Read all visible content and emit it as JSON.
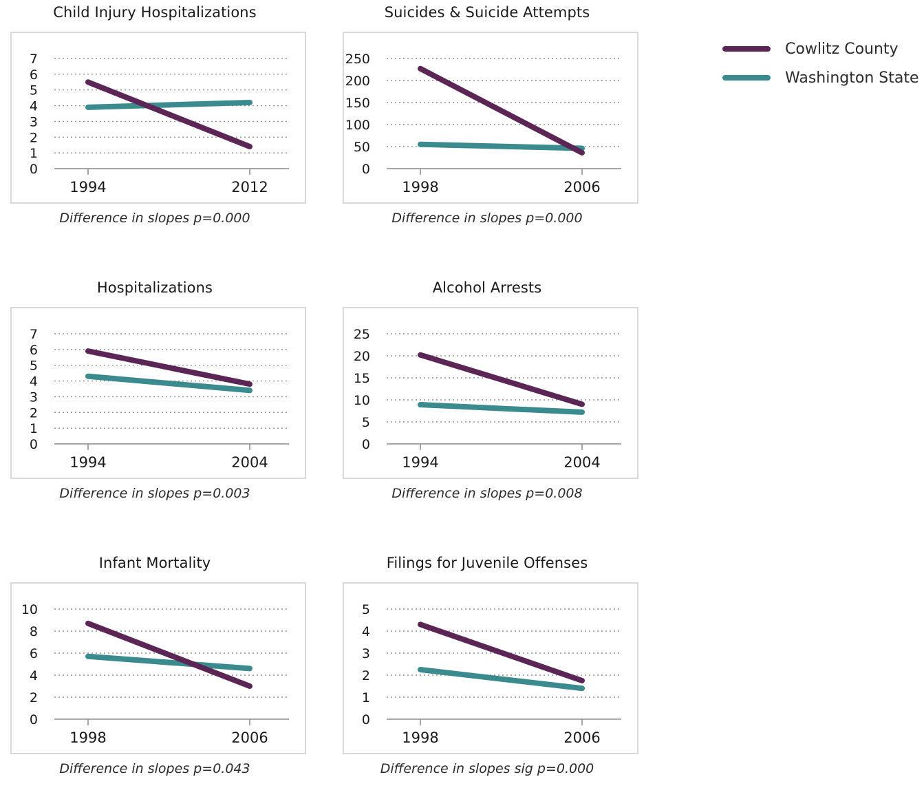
{
  "legend": {
    "items": [
      {
        "label": "Cowlitz County",
        "color": "#5b2556"
      },
      {
        "label": "Washington State",
        "color": "#3a8a8e"
      }
    ]
  },
  "chart_data": [
    {
      "type": "line",
      "title": "Child Injury Hospitalizations",
      "caption": "Difference in slopes p=0.000",
      "categories": [
        "1994",
        "2012"
      ],
      "ylim": [
        0,
        7
      ],
      "yticks": [
        0,
        1,
        2,
        3,
        4,
        5,
        6,
        7
      ],
      "grid": true,
      "series": [
        {
          "name": "Cowlitz County",
          "values": [
            5.5,
            1.4
          ]
        },
        {
          "name": "Washington State",
          "values": [
            3.9,
            4.2
          ]
        }
      ]
    },
    {
      "type": "line",
      "title": "Suicides & Suicide Attempts",
      "caption": "Difference in slopes p=0.000",
      "categories": [
        "1998",
        "2006"
      ],
      "ylim": [
        0,
        250
      ],
      "yticks": [
        0,
        50,
        100,
        150,
        200,
        250
      ],
      "grid": true,
      "series": [
        {
          "name": "Cowlitz County",
          "values": [
            227,
            36
          ]
        },
        {
          "name": "Washington State",
          "values": [
            55,
            46
          ]
        }
      ]
    },
    {
      "type": "line",
      "title": "Hospitalizations",
      "caption": "Difference in slopes p=0.003",
      "categories": [
        "1994",
        "2004"
      ],
      "ylim": [
        0,
        7
      ],
      "yticks": [
        0,
        1,
        2,
        3,
        4,
        5,
        6,
        7
      ],
      "grid": true,
      "series": [
        {
          "name": "Cowlitz County",
          "values": [
            5.9,
            3.8
          ]
        },
        {
          "name": "Washington State",
          "values": [
            4.3,
            3.4
          ]
        }
      ]
    },
    {
      "type": "line",
      "title": "Alcohol Arrests",
      "caption": "Difference in slopes p=0.008",
      "categories": [
        "1994",
        "2004"
      ],
      "ylim": [
        0,
        25
      ],
      "yticks": [
        0,
        5,
        10,
        15,
        20,
        25
      ],
      "grid": true,
      "series": [
        {
          "name": "Cowlitz County",
          "values": [
            20.2,
            9.0
          ]
        },
        {
          "name": "Washington State",
          "values": [
            8.9,
            7.2
          ]
        }
      ]
    },
    {
      "type": "line",
      "title": "Infant Mortality",
      "caption": "Difference in slopes p=0.043",
      "categories": [
        "1998",
        "2006"
      ],
      "ylim": [
        0,
        10
      ],
      "yticks": [
        0,
        2,
        4,
        6,
        8,
        10
      ],
      "grid": true,
      "series": [
        {
          "name": "Cowlitz County",
          "values": [
            8.7,
            3.0
          ]
        },
        {
          "name": "Washington State",
          "values": [
            5.7,
            4.6
          ]
        }
      ]
    },
    {
      "type": "line",
      "title": "Filings for Juvenile Offenses",
      "caption": "Difference in slopes sig p=0.000",
      "categories": [
        "1998",
        "2006"
      ],
      "ylim": [
        0,
        5
      ],
      "yticks": [
        0,
        1,
        2,
        3,
        4,
        5
      ],
      "grid": true,
      "series": [
        {
          "name": "Cowlitz County",
          "values": [
            4.3,
            1.75
          ]
        },
        {
          "name": "Washington State",
          "values": [
            2.25,
            1.4
          ]
        }
      ]
    }
  ]
}
